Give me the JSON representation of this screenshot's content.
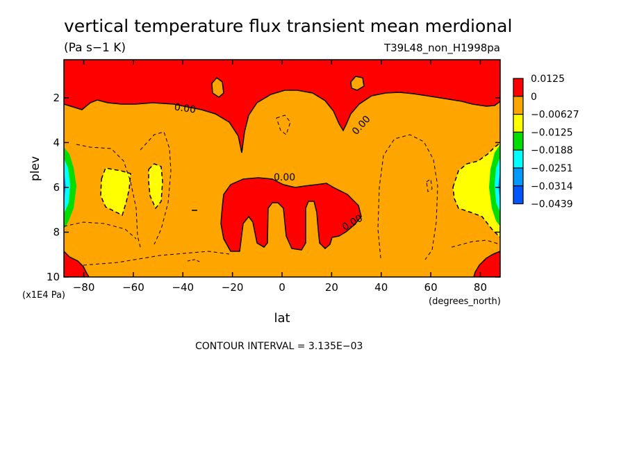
{
  "chart_data": {
    "type": "heatmap",
    "title": "vertical temperature flux transient mean merdional",
    "units": "(Pa s−1 K)",
    "dataset_label": "T39L48_non_H1998pa",
    "xlabel": "lat",
    "x_units": "(degrees_north)",
    "ylabel": "plev",
    "y_units": "(x1E4 Pa)",
    "xlim": [
      -88,
      88
    ],
    "ylim": [
      10,
      0.3
    ],
    "x_ticks": [
      -80,
      -60,
      -40,
      -20,
      0,
      20,
      40,
      60,
      80
    ],
    "x_tick_labels": [
      "−80",
      "−60",
      "−40",
      "−20",
      "0",
      "20",
      "40",
      "60",
      "80"
    ],
    "y_ticks": [
      2,
      4,
      6,
      8,
      10
    ],
    "y_tick_labels": [
      "2",
      "4",
      "6",
      "8",
      "10"
    ],
    "contour_interval_text": "CONTOUR INTERVAL = 3.135E−03",
    "contour_labels": [
      "0.00",
      "0.00",
      "0.00",
      "0.00"
    ],
    "colorbar": {
      "levels": [
        "0.0125",
        "0",
        "−0.00627",
        "−0.0125",
        "−0.0188",
        "−0.0251",
        "−0.0314",
        "−0.0439"
      ],
      "colors": [
        "#ff0000",
        "#ffa500",
        "#ffff00",
        "#00dd00",
        "#00ffff",
        "#0099ff",
        "#0055ff"
      ]
    },
    "regions": [
      {
        "name": "top-positive-band",
        "value": 0.006,
        "color": "#ff0000"
      },
      {
        "name": "central-positive-lobes",
        "value": 0.004,
        "color": "#ff0000"
      },
      {
        "name": "left-bottom-corner-positive",
        "value": 0.004,
        "color": "#ff0000"
      },
      {
        "name": "right-bottom-corner-positive",
        "value": 0.004,
        "color": "#ff0000"
      },
      {
        "name": "yellow-south-1",
        "value": -0.008,
        "color": "#ffff00"
      },
      {
        "name": "yellow-south-2",
        "value": -0.008,
        "color": "#ffff00"
      },
      {
        "name": "yellow-north",
        "value": -0.008,
        "color": "#ffff00"
      },
      {
        "name": "left-edge-strong-negative",
        "value": -0.03,
        "color": "#00ffff"
      },
      {
        "name": "right-edge-strong-negative",
        "value": -0.03,
        "color": "#00ffff"
      }
    ]
  }
}
